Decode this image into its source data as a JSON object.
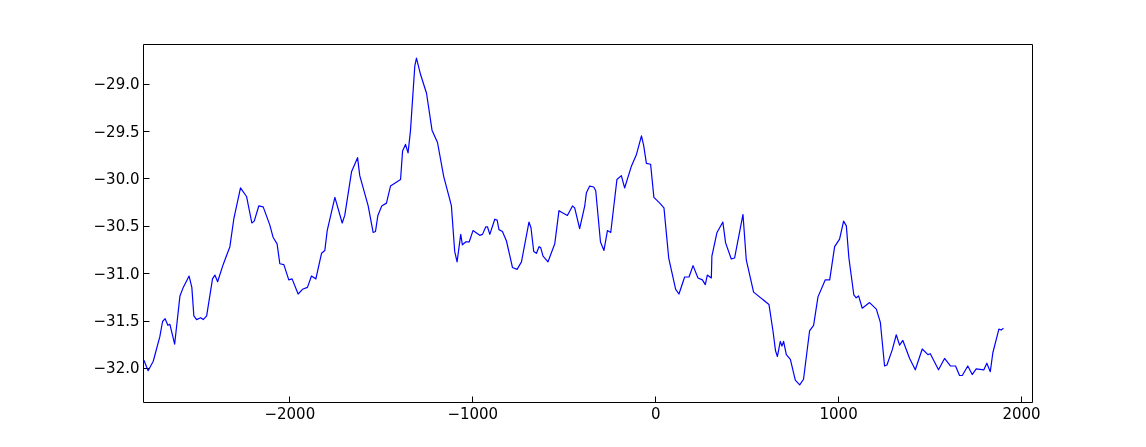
{
  "chart_data": {
    "type": "line",
    "grid": false,
    "xlim": [
      -2800,
      2060
    ],
    "ylim": [
      -32.36,
      -28.58
    ],
    "xticks": [
      {
        "value": -2000,
        "label": "−2000"
      },
      {
        "value": -1000,
        "label": "−1000"
      },
      0,
      1000,
      2000
    ],
    "yticks": [
      {
        "value": -32.0,
        "label": "−32.0"
      },
      {
        "value": -31.5,
        "label": "−31.5"
      },
      {
        "value": -31.0,
        "label": "−31.0"
      },
      {
        "value": -30.5,
        "label": "−30.5"
      },
      {
        "value": -30.0,
        "label": "−30.0"
      },
      {
        "value": -29.5,
        "label": "−29.5"
      },
      {
        "value": -29.0,
        "label": "−29.0"
      }
    ],
    "x": [
      -2795,
      -2772,
      -2744,
      -2708,
      -2693,
      -2679,
      -2664,
      -2653,
      -2627,
      -2598,
      -2580,
      -2548,
      -2533,
      -2522,
      -2507,
      -2485,
      -2471,
      -2452,
      -2420,
      -2407,
      -2392,
      -2362,
      -2325,
      -2303,
      -2267,
      -2234,
      -2205,
      -2192,
      -2167,
      -2143,
      -2107,
      -2089,
      -2067,
      -2052,
      -2030,
      -2003,
      -1985,
      -1952,
      -1928,
      -1901,
      -1879,
      -1855,
      -1824,
      -1806,
      -1793,
      -1751,
      -1711,
      -1697,
      -1660,
      -1627,
      -1615,
      -1569,
      -1542,
      -1529,
      -1516,
      -1495,
      -1469,
      -1447,
      -1392,
      -1381,
      -1365,
      -1351,
      -1338,
      -1314,
      -1305,
      -1283,
      -1250,
      -1220,
      -1190,
      -1156,
      -1123,
      -1114,
      -1096,
      -1083,
      -1063,
      -1054,
      -1036,
      -1017,
      -996,
      -959,
      -944,
      -926,
      -917,
      -904,
      -877,
      -864,
      -854,
      -835,
      -813,
      -780,
      -755,
      -731,
      -690,
      -679,
      -664,
      -649,
      -635,
      -626,
      -613,
      -586,
      -549,
      -526,
      -480,
      -452,
      -440,
      -413,
      -385,
      -376,
      -358,
      -336,
      -325,
      -299,
      -280,
      -261,
      -243,
      -209,
      -185,
      -167,
      -130,
      -103,
      -75,
      -63,
      -48,
      -25,
      -7,
      25,
      48,
      74,
      112,
      130,
      161,
      185,
      207,
      234,
      258,
      274,
      285,
      307,
      310,
      338,
      370,
      385,
      416,
      434,
      480,
      498,
      538,
      622,
      644,
      658,
      668,
      684,
      693,
      702,
      717,
      739,
      766,
      790,
      811,
      844,
      866,
      890,
      930,
      954,
      981,
      1008,
      1030,
      1045,
      1059,
      1086,
      1099,
      1112,
      1132,
      1172,
      1209,
      1231,
      1254,
      1267,
      1296,
      1318,
      1336,
      1354,
      1391,
      1422,
      1460,
      1491,
      1504,
      1549,
      1582,
      1615,
      1642,
      1664,
      1679,
      1709,
      1733,
      1755,
      1797,
      1813,
      1832,
      1846,
      1879,
      1892,
      1904
    ],
    "series": [
      {
        "color": "#0000ff",
        "values": [
          -31.92,
          -32.03,
          -31.93,
          -31.67,
          -31.51,
          -31.48,
          -31.55,
          -31.54,
          -31.75,
          -31.24,
          -31.15,
          -31.03,
          -31.15,
          -31.45,
          -31.49,
          -31.47,
          -31.49,
          -31.45,
          -31.06,
          -31.02,
          -31.09,
          -30.91,
          -30.72,
          -30.42,
          -30.1,
          -30.19,
          -30.47,
          -30.45,
          -30.29,
          -30.3,
          -30.49,
          -30.62,
          -30.69,
          -30.9,
          -30.91,
          -31.07,
          -31.06,
          -31.22,
          -31.17,
          -31.15,
          -31.03,
          -31.06,
          -30.79,
          -30.76,
          -30.55,
          -30.2,
          -30.47,
          -30.39,
          -29.93,
          -29.78,
          -29.97,
          -30.29,
          -30.57,
          -30.56,
          -30.39,
          -30.29,
          -30.26,
          -30.08,
          -30.01,
          -29.71,
          -29.64,
          -29.73,
          -29.5,
          -28.81,
          -28.73,
          -28.9,
          -29.1,
          -29.49,
          -29.62,
          -29.98,
          -30.22,
          -30.29,
          -30.77,
          -30.88,
          -30.59,
          -30.7,
          -30.67,
          -30.67,
          -30.55,
          -30.6,
          -30.59,
          -30.51,
          -30.51,
          -30.59,
          -30.43,
          -30.44,
          -30.54,
          -30.56,
          -30.66,
          -30.94,
          -30.96,
          -30.88,
          -30.46,
          -30.52,
          -30.77,
          -30.79,
          -30.72,
          -30.73,
          -30.82,
          -30.88,
          -30.69,
          -30.34,
          -30.39,
          -30.29,
          -30.31,
          -30.53,
          -30.29,
          -30.15,
          -30.08,
          -30.09,
          -30.13,
          -30.67,
          -30.76,
          -30.55,
          -30.57,
          -30.01,
          -29.97,
          -30.1,
          -29.87,
          -29.75,
          -29.55,
          -29.65,
          -29.84,
          -29.85,
          -30.2,
          -30.26,
          -30.31,
          -30.84,
          -31.17,
          -31.22,
          -31.04,
          -31.04,
          -30.92,
          -31.05,
          -31.07,
          -31.12,
          -31.02,
          -31.05,
          -30.82,
          -30.57,
          -30.46,
          -30.68,
          -30.85,
          -30.84,
          -30.38,
          -30.86,
          -31.2,
          -31.33,
          -31.61,
          -31.82,
          -31.88,
          -31.72,
          -31.77,
          -31.72,
          -31.86,
          -31.91,
          -32.13,
          -32.18,
          -32.12,
          -31.61,
          -31.55,
          -31.25,
          -31.07,
          -31.07,
          -30.72,
          -30.64,
          -30.45,
          -30.5,
          -30.84,
          -31.23,
          -31.26,
          -31.24,
          -31.37,
          -31.31,
          -31.38,
          -31.52,
          -31.98,
          -31.97,
          -31.81,
          -31.65,
          -31.76,
          -31.71,
          -31.9,
          -32.02,
          -31.8,
          -31.86,
          -31.85,
          -32.02,
          -31.9,
          -31.98,
          -31.98,
          -32.08,
          -32.08,
          -31.98,
          -32.07,
          -32.01,
          -32.02,
          -31.95,
          -32.04,
          -31.84,
          -31.59,
          -31.6,
          -31.58
        ]
      }
    ]
  }
}
